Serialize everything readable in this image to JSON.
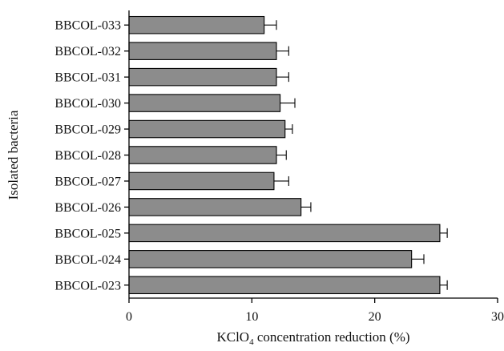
{
  "chart_data": {
    "type": "bar",
    "orientation": "horizontal",
    "categories": [
      "BBCOL-033",
      "BBCOL-032",
      "BBCOL-031",
      "BBCOL-030",
      "BBCOL-029",
      "BBCOL-028",
      "BBCOL-027",
      "BBCOL-026",
      "BBCOL-025",
      "BBCOL-024",
      "BBCOL-023"
    ],
    "values": [
      11.0,
      12.0,
      12.0,
      12.3,
      12.7,
      12.0,
      11.8,
      14.0,
      25.3,
      23.0,
      25.3
    ],
    "errors": [
      1.0,
      1.0,
      1.0,
      1.2,
      0.6,
      0.8,
      1.2,
      0.8,
      0.6,
      1.0,
      0.6
    ],
    "title": "",
    "xlabel_prefix": "KClO",
    "xlabel_subscript": "4",
    "xlabel_suffix": " concentration reduction (%)",
    "ylabel": "Isolated bacteria",
    "xlim": [
      0,
      30
    ],
    "xticks": [
      0,
      10,
      20,
      30
    ],
    "grid": false,
    "bar_color": "#8c8c8c"
  }
}
